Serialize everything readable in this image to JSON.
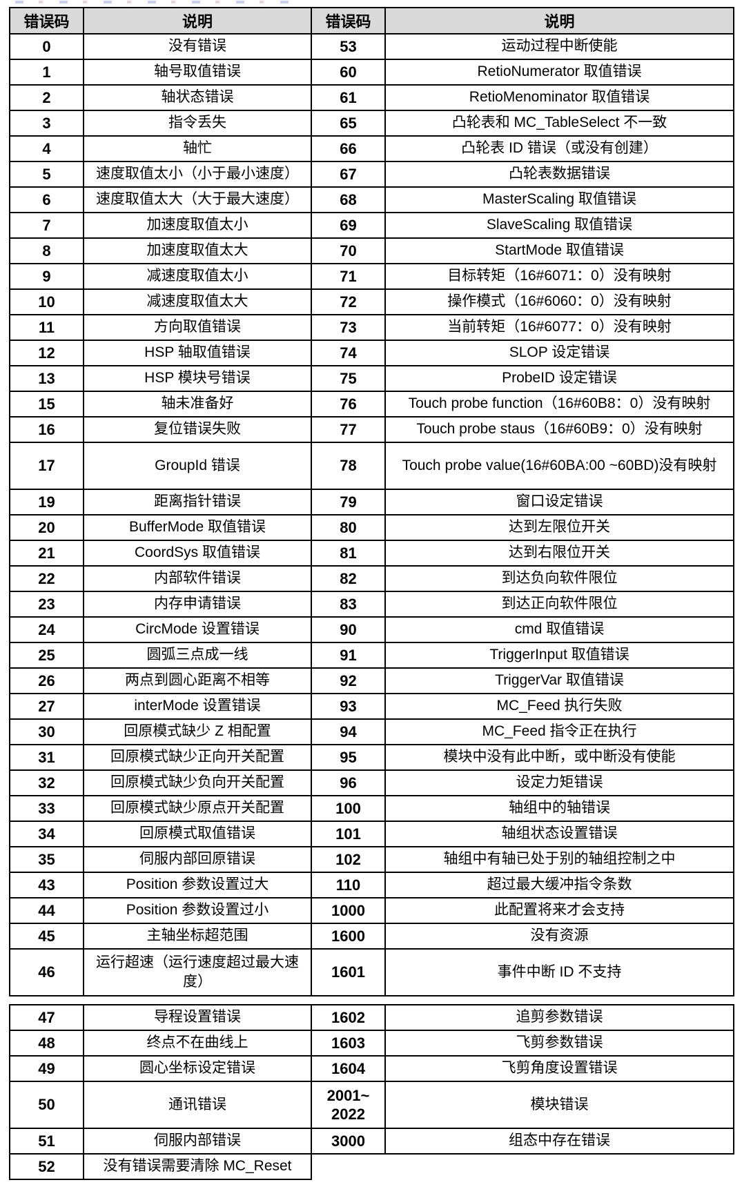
{
  "colors": {
    "header_bg": "#d9d9d9",
    "border": "#000000",
    "text": "#000000"
  },
  "table": {
    "headers": [
      "错误码",
      "说明",
      "错误码",
      "说明"
    ],
    "rows_part1": [
      [
        "0",
        "没有错误",
        "53",
        "运动过程中断使能"
      ],
      [
        "1",
        "轴号取值错误",
        "60",
        "RetioNumerator 取值错误"
      ],
      [
        "2",
        "轴状态错误",
        "61",
        "RetioMenominator 取值错误"
      ],
      [
        "3",
        "指令丢失",
        "65",
        "凸轮表和 MC_TableSelect 不一致"
      ],
      [
        "4",
        "轴忙",
        "66",
        "凸轮表 ID 错误（或没有创建）"
      ],
      [
        "5",
        "速度取值太小（小于最小速度）",
        "67",
        "凸轮表数据错误"
      ],
      [
        "6",
        "速度取值太大（大于最大速度）",
        "68",
        "MasterScaling 取值错误"
      ],
      [
        "7",
        "加速度取值太小",
        "69",
        "SlaveScaling 取值错误"
      ],
      [
        "8",
        "加速度取值太大",
        "70",
        "StartMode 取值错误"
      ],
      [
        "9",
        "减速度取值太小",
        "71",
        "目标转矩（16#6071：0）没有映射"
      ],
      [
        "10",
        "减速度取值太大",
        "72",
        "操作模式（16#6060：0）没有映射"
      ],
      [
        "11",
        "方向取值错误",
        "73",
        "当前转矩（16#6077：0）没有映射"
      ],
      [
        "12",
        "HSP 轴取值错误",
        "74",
        "SLOP 设定错误"
      ],
      [
        "13",
        "HSP 模块号错误",
        "75",
        "ProbeID 设定错误"
      ],
      [
        "15",
        "轴未准备好",
        "76",
        "Touch probe function（16#60B8：0）没有映射"
      ],
      [
        "16",
        "复位错误失败",
        "77",
        "Touch probe staus（16#60B9：0）没有映射"
      ],
      [
        "17",
        "GroupId 错误",
        "78",
        "Touch probe value(16#60BA:00 ~60BD)没有映射"
      ],
      [
        "19",
        "距离指针错误",
        "79",
        "窗口设定错误"
      ],
      [
        "20",
        "BufferMode 取值错误",
        "80",
        "达到左限位开关"
      ],
      [
        "21",
        "CoordSys 取值错误",
        "81",
        "达到右限位开关"
      ],
      [
        "22",
        "内部软件错误",
        "82",
        "到达负向软件限位"
      ],
      [
        "23",
        "内存申请错误",
        "83",
        "到达正向软件限位"
      ],
      [
        "24",
        "CircMode 设置错误",
        "90",
        "cmd 取值错误"
      ],
      [
        "25",
        "圆弧三点成一线",
        "91",
        "TriggerInput 取值错误"
      ],
      [
        "26",
        "两点到圆心距离不相等",
        "92",
        "TriggerVar 取值错误"
      ],
      [
        "27",
        "interMode 设置错误",
        "93",
        "MC_Feed 执行失败"
      ],
      [
        "30",
        "回原模式缺少 Z 相配置",
        "94",
        "MC_Feed 指令正在执行"
      ],
      [
        "31",
        "回原模式缺少正向开关配置",
        "95",
        "模块中没有此中断，或中断没有使能"
      ],
      [
        "32",
        "回原模式缺少负向开关配置",
        "96",
        "设定力矩错误"
      ],
      [
        "33",
        "回原模式缺少原点开关配置",
        "100",
        "轴组中的轴错误"
      ],
      [
        "34",
        "回原模式取值错误",
        "101",
        "轴组状态设置错误"
      ],
      [
        "35",
        "伺服内部回原错误",
        "102",
        "轴组中有轴已处于别的轴组控制之中"
      ],
      [
        "43",
        "Position 参数设置过大",
        "110",
        "超过最大缓冲指令条数"
      ],
      [
        "44",
        "Position 参数设置过小",
        "1000",
        "此配置将来才会支持"
      ],
      [
        "45",
        "主轴坐标超范围",
        "1600",
        "没有资源"
      ],
      [
        "46",
        "运行超速（运行速度超过最大速度）",
        "1601",
        "事件中断 ID 不支持"
      ]
    ],
    "rows_part2": [
      [
        "47",
        "导程设置错误",
        "1602",
        "追剪参数错误"
      ],
      [
        "48",
        "终点不在曲线上",
        "1603",
        "飞剪参数错误"
      ],
      [
        "49",
        "圆心坐标设定错误",
        "1604",
        "飞剪角度设置错误"
      ],
      [
        "50",
        "通讯错误",
        "2001~\n2022",
        "模块错误"
      ],
      [
        "51",
        "伺服内部错误",
        "3000",
        "组态中存在错误"
      ],
      [
        "52",
        "没有错误需要清除 MC_Reset",
        null,
        null
      ]
    ]
  }
}
